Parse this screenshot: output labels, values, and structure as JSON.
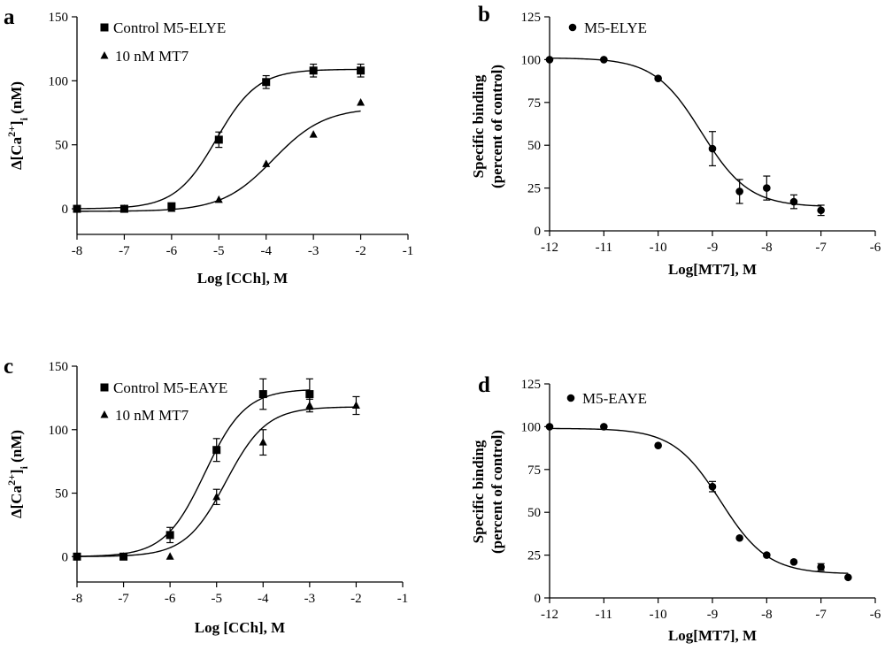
{
  "chart_data": [
    {
      "type": "line",
      "panel": "a",
      "title": "",
      "xlabel": "Log [CCh], M",
      "ylabel": "Δ[Ca2+]i (nM)",
      "ylabel_parts": {
        "prefix": "Δ[Ca",
        "sup": "2+",
        "mid": "]",
        "sub": "i",
        "suffix": " (nM)"
      },
      "xlim": [
        -8,
        -1
      ],
      "ylim": [
        -20,
        150
      ],
      "xticks": [
        -8,
        -7,
        -6,
        -5,
        -4,
        -3,
        -2,
        -1
      ],
      "xtick_labels": [
        "-8",
        "-7",
        "-6",
        "-5",
        "-4",
        "-3",
        "-2",
        "-1"
      ],
      "yticks": [
        0,
        50,
        100,
        150
      ],
      "ytick_labels": [
        "0",
        "50",
        "100",
        "150"
      ],
      "legend_position": "top-left",
      "series": [
        {
          "name": "Control M5-ELYE",
          "marker": "square",
          "x": [
            -8,
            -7,
            -6,
            -5,
            -4,
            -3,
            -2
          ],
          "y": [
            0,
            0,
            2,
            54,
            99,
            108,
            108
          ],
          "err": [
            1,
            1,
            2,
            6,
            5,
            5,
            5
          ],
          "fit": {
            "bottom": 0,
            "top": 109,
            "logEC50": -5.05,
            "hill": 1.0
          }
        },
        {
          "name": "10 nM MT7",
          "marker": "triangle",
          "x": [
            -8,
            -7,
            -6,
            -5,
            -4,
            -3,
            -2
          ],
          "y": [
            0,
            0,
            0,
            7,
            35,
            58,
            83
          ],
          "err": [
            0,
            0,
            0,
            0,
            0,
            0,
            0
          ],
          "fit": {
            "bottom": -2,
            "top": 79,
            "logEC50": -3.85,
            "hill": 0.8
          }
        }
      ]
    },
    {
      "type": "line",
      "panel": "b",
      "title": "",
      "xlabel": "Log[MT7], M",
      "ylabel_line1": "Specific binding",
      "ylabel_line2": "(percent of control)",
      "xlim": [
        -12,
        -6
      ],
      "ylim": [
        0,
        125
      ],
      "xticks": [
        -12,
        -11,
        -10,
        -9,
        -8,
        -7,
        -6
      ],
      "xtick_labels": [
        "-12",
        "-11",
        "-10",
        "-9",
        "-8",
        "-7",
        "-6"
      ],
      "yticks": [
        0,
        25,
        50,
        75,
        100,
        125
      ],
      "ytick_labels": [
        "0",
        "25",
        "50",
        "75",
        "100",
        "125"
      ],
      "legend_position": "top-left",
      "series": [
        {
          "name": "M5-ELYE",
          "marker": "circle",
          "x": [
            -12,
            -11,
            -10,
            -9,
            -8.5,
            -8,
            -7.5,
            -7
          ],
          "y": [
            100,
            100,
            89,
            48,
            23,
            25,
            17,
            12
          ],
          "err": [
            0,
            0,
            0,
            10,
            7,
            7,
            4,
            3
          ],
          "fit": {
            "bottom": 14,
            "top": 101,
            "logIC50": -9.2,
            "hill": 1.0
          }
        }
      ]
    },
    {
      "type": "line",
      "panel": "c",
      "title": "",
      "xlabel": "Log [CCh], M",
      "ylabel": "Δ[Ca2+]i (nM)",
      "ylabel_parts": {
        "prefix": "Δ[Ca",
        "sup": "2+",
        "mid": "]",
        "sub": "i",
        "suffix": " (nM)"
      },
      "xlim": [
        -8,
        -1
      ],
      "ylim": [
        -20,
        150
      ],
      "xticks": [
        -8,
        -7,
        -6,
        -5,
        -4,
        -3,
        -2,
        -1
      ],
      "xtick_labels": [
        "-8",
        "-7",
        "-6",
        "-5",
        "-4",
        "-3",
        "-2",
        "-1"
      ],
      "yticks": [
        0,
        50,
        100,
        150
      ],
      "ytick_labels": [
        "0",
        "50",
        "100",
        "150"
      ],
      "legend_position": "top-left",
      "series": [
        {
          "name": "Control M5-EAYE",
          "marker": "square",
          "x": [
            -8,
            -7,
            -6,
            -5,
            -4,
            -3
          ],
          "y": [
            0,
            0,
            17,
            84,
            128,
            128
          ],
          "err": [
            0,
            0,
            6,
            9,
            12,
            12
          ],
          "fit": {
            "bottom": 0,
            "top": 132,
            "logEC50": -5.25,
            "hill": 1.0
          }
        },
        {
          "name": "10 nM MT7",
          "marker": "triangle",
          "x": [
            -8,
            -7,
            -6,
            -5,
            -4,
            -3,
            -2
          ],
          "y": [
            0,
            0,
            0,
            47,
            90,
            119,
            119
          ],
          "err": [
            0,
            0,
            0,
            6,
            10,
            5,
            7
          ],
          "fit": {
            "bottom": 0,
            "top": 118,
            "logEC50": -4.8,
            "hill": 1.0
          }
        }
      ]
    },
    {
      "type": "line",
      "panel": "d",
      "title": "",
      "xlabel": "Log[MT7], M",
      "ylabel_line1": "Specific binding",
      "ylabel_line2": "(percent of control)",
      "xlim": [
        -12,
        -6
      ],
      "ylim": [
        0,
        125
      ],
      "xticks": [
        -12,
        -11,
        -10,
        -9,
        -8,
        -7,
        -6
      ],
      "xtick_labels": [
        "-12",
        "-11",
        "-10",
        "-9",
        "-8",
        "-7",
        "-6"
      ],
      "yticks": [
        0,
        25,
        50,
        75,
        100,
        125
      ],
      "ytick_labels": [
        "0",
        "25",
        "50",
        "75",
        "100",
        "125"
      ],
      "legend_position": "top-left",
      "series": [
        {
          "name": "M5-EAYE",
          "marker": "circle",
          "x": [
            -12,
            -11,
            -10,
            -9,
            -8.5,
            -8,
            -7.5,
            -7,
            -6.5
          ],
          "y": [
            100,
            100,
            89,
            65,
            35,
            25,
            21,
            18,
            12
          ],
          "err": [
            0,
            0,
            0,
            3,
            0,
            0,
            0,
            2,
            0
          ],
          "fit": {
            "bottom": 14,
            "top": 99,
            "logIC50": -8.85,
            "hill": 1.0
          }
        }
      ]
    }
  ]
}
